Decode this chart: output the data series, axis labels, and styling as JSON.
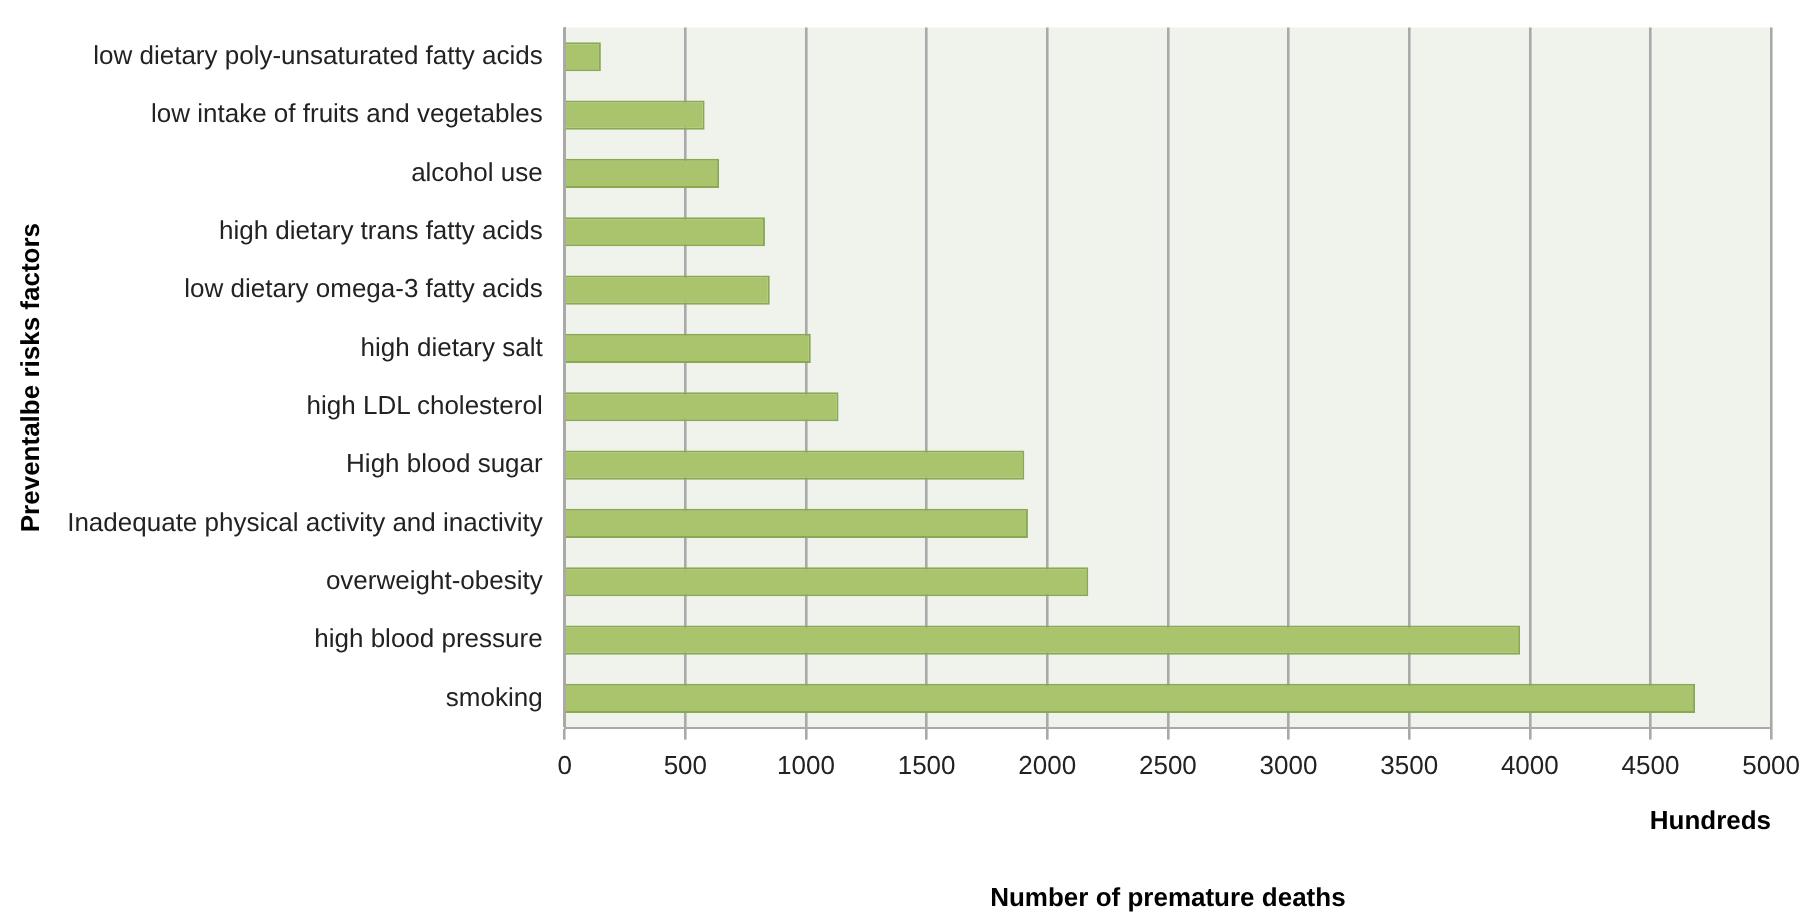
{
  "chart_data": {
    "type": "bar",
    "orientation": "horizontal",
    "categories": [
      "low dietary poly-unsaturated fatty acids",
      "low intake of fruits and vegetables",
      "alcohol use",
      "high dietary trans fatty acids",
      "low dietary omega-3 fatty acids",
      "high dietary salt",
      "high LDL cholesterol",
      "High blood sugar",
      "Inadequate physical activity and inactivity",
      "overweight-obesity",
      "high blood pressure",
      "smoking"
    ],
    "values": [
      150,
      580,
      640,
      830,
      850,
      1020,
      1135,
      1905,
      1920,
      2170,
      3960,
      4685
    ],
    "color": "#a9c46c",
    "xlim": [
      0,
      5000
    ],
    "xticks": [
      0,
      500,
      1000,
      1500,
      2000,
      2500,
      3000,
      3500,
      4000,
      4500,
      5000
    ],
    "xlabel": "Number of premature deaths",
    "ylabel": "Preventalbe risks factors",
    "annotations": [
      "Hundreds"
    ],
    "grid": "x",
    "legend": false
  }
}
